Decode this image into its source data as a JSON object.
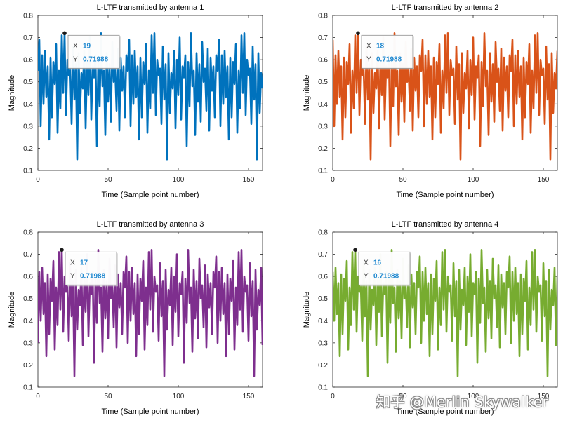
{
  "chart_data": [
    {
      "type": "line",
      "title": "L-LTF transmitted by antenna 1",
      "xlabel": "Time (Sample point number)",
      "ylabel": "Magnitude",
      "xlim": [
        0,
        160
      ],
      "ylim": [
        0.1,
        0.8
      ],
      "xticks": [
        "0",
        "50",
        "100",
        "150"
      ],
      "yticks": [
        "0.1",
        "0.2",
        "0.3",
        "0.4",
        "0.5",
        "0.6",
        "0.7",
        "0.8"
      ],
      "color": "#0072BD",
      "shift": 0,
      "datatip": {
        "x_label": "X",
        "x_value": "19",
        "y_label": "Y",
        "y_value": "0.71988",
        "x": 19,
        "y": 0.71988
      }
    },
    {
      "type": "line",
      "title": "L-LTF transmitted by antenna 2",
      "xlabel": "Time (Sample point number)",
      "ylabel": "Magnitude",
      "xlim": [
        0,
        160
      ],
      "ylim": [
        0.1,
        0.8
      ],
      "xticks": [
        "0",
        "50",
        "100",
        "150"
      ],
      "yticks": [
        "0.1",
        "0.2",
        "0.3",
        "0.4",
        "0.5",
        "0.6",
        "0.7",
        "0.8"
      ],
      "color": "#D95319",
      "shift": 1,
      "datatip": {
        "x_label": "X",
        "x_value": "18",
        "y_label": "Y",
        "y_value": "0.71988",
        "x": 18,
        "y": 0.71988
      }
    },
    {
      "type": "line",
      "title": "L-LTF transmitted by antenna 3",
      "xlabel": "Time (Sample point number)",
      "ylabel": "Magnitude",
      "xlim": [
        0,
        160
      ],
      "ylim": [
        0.1,
        0.8
      ],
      "xticks": [
        "0",
        "50",
        "100",
        "150"
      ],
      "yticks": [
        "0.1",
        "0.2",
        "0.3",
        "0.4",
        "0.5",
        "0.6",
        "0.7",
        "0.8"
      ],
      "color": "#7E2F8E",
      "shift": 2,
      "datatip": {
        "x_label": "X",
        "x_value": "17",
        "y_label": "Y",
        "y_value": "0.71988",
        "x": 17,
        "y": 0.71988
      }
    },
    {
      "type": "line",
      "title": "L-LTF transmitted by antenna 4",
      "xlabel": "Time (Sample point number)",
      "ylabel": "Magnitude",
      "xlim": [
        0,
        160
      ],
      "ylim": [
        0.1,
        0.8
      ],
      "xticks": [
        "0",
        "50",
        "100",
        "150"
      ],
      "yticks": [
        "0.1",
        "0.2",
        "0.3",
        "0.4",
        "0.5",
        "0.6",
        "0.7",
        "0.8"
      ],
      "color": "#77AC30",
      "shift": 3,
      "datatip": {
        "x_label": "X",
        "x_value": "16",
        "y_label": "Y",
        "y_value": "0.71988",
        "x": 16,
        "y": 0.71988
      }
    }
  ],
  "base_signal": {
    "period": 64,
    "values": [
      0.55,
      0.69,
      0.3,
      0.62,
      0.4,
      0.64,
      0.43,
      0.57,
      0.24,
      0.61,
      0.34,
      0.59,
      0.49,
      0.67,
      0.27,
      0.55,
      0.38,
      0.71,
      0.45,
      0.72,
      0.35,
      0.6,
      0.53,
      0.56,
      0.31,
      0.66,
      0.42,
      0.58,
      0.15,
      0.63,
      0.36,
      0.54,
      0.47,
      0.64,
      0.29,
      0.6,
      0.44,
      0.7,
      0.33,
      0.57,
      0.52,
      0.62,
      0.21,
      0.59,
      0.39,
      0.72,
      0.48,
      0.55,
      0.26,
      0.63,
      0.41,
      0.58,
      0.32,
      0.68,
      0.5,
      0.56,
      0.37,
      0.65,
      0.28,
      0.61,
      0.46,
      0.57,
      0.34,
      0.62
    ]
  },
  "watermark": "知乎 @Merlin Skywalker"
}
